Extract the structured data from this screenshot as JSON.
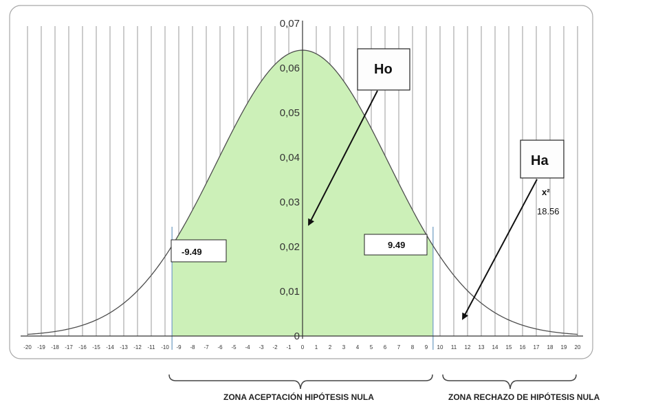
{
  "chart_data": {
    "type": "area",
    "x_ticks": [
      -20,
      -19,
      -18,
      -17,
      -16,
      -15,
      -14,
      -13,
      -12,
      -11,
      -10,
      -9,
      -8,
      -7,
      -6,
      -5,
      -4,
      -3,
      -2,
      -1,
      0,
      1,
      2,
      3,
      4,
      5,
      6,
      7,
      8,
      9,
      10,
      11,
      12,
      13,
      14,
      15,
      16,
      17,
      18,
      19,
      20
    ],
    "xlim": [
      -20,
      20
    ],
    "y_ticks": [
      "0",
      "0,01",
      "0,02",
      "0,03",
      "0,04",
      "0,05",
      "0,06",
      "0,07"
    ],
    "ylim": [
      0,
      0.07
    ],
    "curve": {
      "type": "normal",
      "mean": 0,
      "sd": 6.25,
      "peak": 0.064
    },
    "shaded_region": {
      "from": -9.49,
      "to": 9.49,
      "color": "#ccf0b8"
    },
    "grid": true,
    "critical_labels": {
      "left": "-9.49",
      "right": "9.49"
    },
    "ho_label": "Ho",
    "ha_label": "Ha",
    "chi_label": "x²",
    "chi_value_label": "18.56",
    "zone_accept_label": "ZONA ACEPTACIÓN HIPÓTESIS NULA",
    "zone_reject_label": "ZONA RECHAZO DE  HIPÓTESIS NULA"
  }
}
